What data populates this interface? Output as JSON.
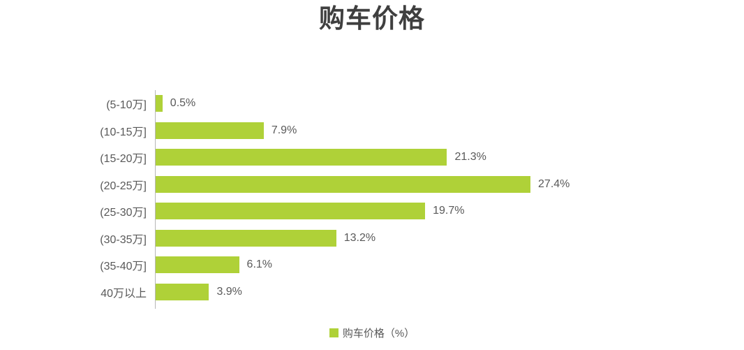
{
  "title": "购车价格",
  "legend": {
    "label": "购车价格（%）"
  },
  "colors": {
    "bar": "#afd138",
    "title_text": "#3f3f3f",
    "label_text": "#595959",
    "axis_line": "#b7b7b7",
    "background": "#ffffff"
  },
  "chart_data": {
    "type": "bar",
    "orientation": "horizontal",
    "title": "购车价格",
    "series_name": "购车价格（%）",
    "categories": [
      "(5-10万]",
      "(10-15万]",
      "(15-20万]",
      "(20-25万]",
      "(25-30万]",
      "(30-35万]",
      "(35-40万]",
      "40万以上"
    ],
    "values": [
      0.5,
      7.9,
      21.3,
      27.4,
      19.7,
      13.2,
      6.1,
      3.9
    ],
    "value_labels": [
      "0.5%",
      "7.9%",
      "21.3%",
      "27.4%",
      "19.7%",
      "13.2%",
      "6.1%",
      "3.9%"
    ],
    "unit": "%",
    "xlim": [
      0,
      30
    ],
    "grid": false,
    "data_labels": true,
    "legend_position": "bottom",
    "bar_color": "#afd138"
  }
}
